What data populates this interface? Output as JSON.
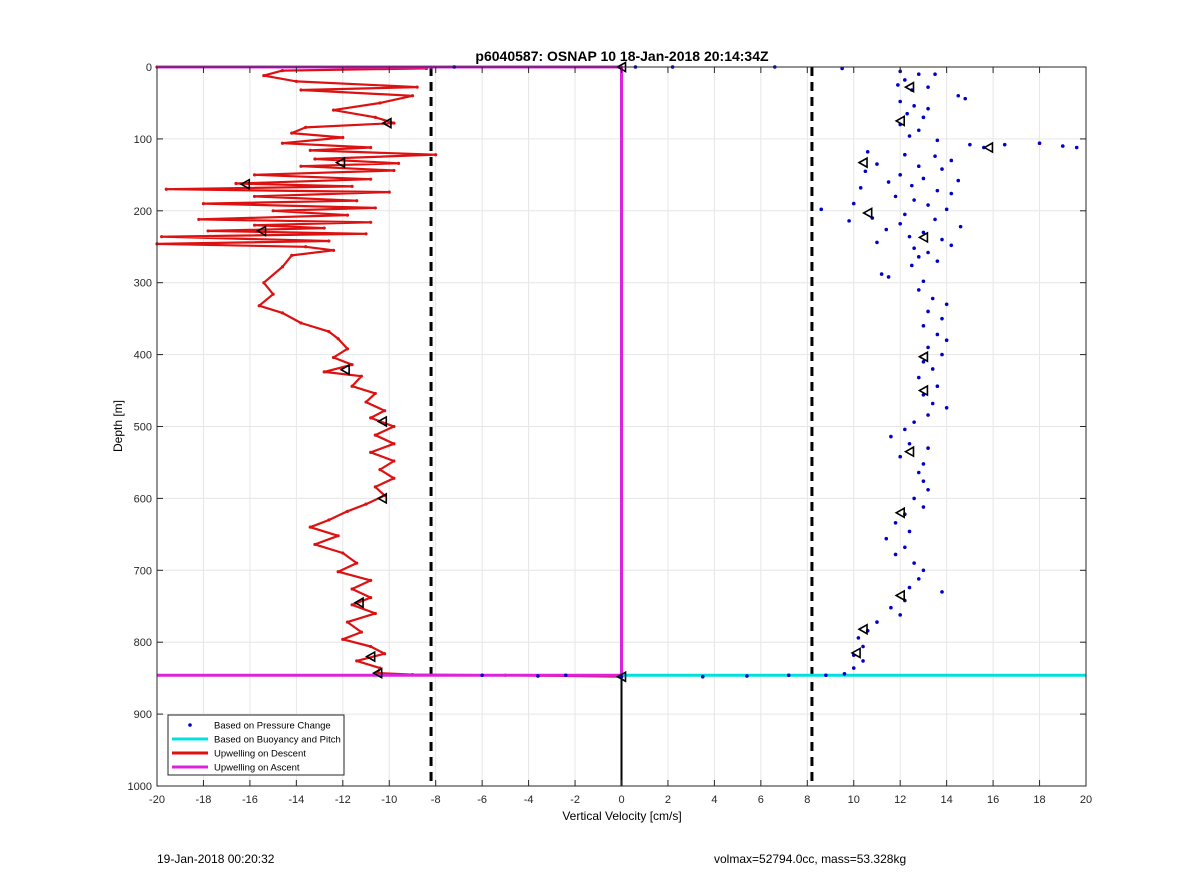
{
  "chart_data": {
    "type": "scatter",
    "title": "p6040587: OSNAP 10 18-Jan-2018 20:14:34Z",
    "xlabel": "Vertical Velocity [cm/s]",
    "ylabel": "Depth [m]",
    "xlim": [
      -20,
      20
    ],
    "ylim": [
      0,
      1000
    ],
    "y_reversed": true,
    "xticks": [
      -20,
      -18,
      -16,
      -14,
      -12,
      -10,
      -8,
      -6,
      -4,
      -2,
      0,
      2,
      4,
      6,
      8,
      10,
      12,
      14,
      16,
      18,
      20
    ],
    "yticks": [
      0,
      100,
      200,
      300,
      400,
      500,
      600,
      700,
      800,
      900,
      1000
    ],
    "grid": true,
    "legend_position": "bottom-left",
    "series": [
      {
        "name": "Based on Pressure Change",
        "color": "#0000cc",
        "marker": "dot",
        "points": [
          [
            9.5,
            2
          ],
          [
            12.0,
            6
          ],
          [
            12.8,
            10
          ],
          [
            13.5,
            10
          ],
          [
            12.2,
            18
          ],
          [
            11.9,
            25
          ],
          [
            12.5,
            32
          ],
          [
            13.2,
            28
          ],
          [
            14.5,
            40
          ],
          [
            14.8,
            44
          ],
          [
            12.0,
            48
          ],
          [
            12.6,
            54
          ],
          [
            13.2,
            58
          ],
          [
            12.3,
            65
          ],
          [
            13.0,
            70
          ],
          [
            12.0,
            80
          ],
          [
            12.8,
            88
          ],
          [
            12.4,
            96
          ],
          [
            13.6,
            102
          ],
          [
            15.0,
            108
          ],
          [
            15.6,
            112
          ],
          [
            16.5,
            108
          ],
          [
            18.0,
            106
          ],
          [
            19.0,
            110
          ],
          [
            19.6,
            112
          ],
          [
            10.6,
            118
          ],
          [
            12.2,
            122
          ],
          [
            13.5,
            124
          ],
          [
            14.2,
            130
          ],
          [
            11.0,
            135
          ],
          [
            12.8,
            138
          ],
          [
            13.8,
            142
          ],
          [
            10.5,
            145
          ],
          [
            12.0,
            150
          ],
          [
            13.0,
            155
          ],
          [
            14.5,
            158
          ],
          [
            11.5,
            160
          ],
          [
            12.5,
            165
          ],
          [
            10.3,
            168
          ],
          [
            13.6,
            172
          ],
          [
            14.2,
            176
          ],
          [
            11.8,
            180
          ],
          [
            12.6,
            185
          ],
          [
            10.0,
            190
          ],
          [
            13.2,
            192
          ],
          [
            8.6,
            198
          ],
          [
            14.0,
            198
          ],
          [
            12.2,
            205
          ],
          [
            10.8,
            210
          ],
          [
            13.5,
            212
          ],
          [
            9.8,
            214
          ],
          [
            12.0,
            218
          ],
          [
            14.6,
            222
          ],
          [
            11.4,
            226
          ],
          [
            13.0,
            230
          ],
          [
            12.4,
            236
          ],
          [
            13.8,
            240
          ],
          [
            11.0,
            244
          ],
          [
            14.2,
            248
          ],
          [
            12.6,
            252
          ],
          [
            13.2,
            258
          ],
          [
            12.8,
            264
          ],
          [
            13.6,
            270
          ],
          [
            12.5,
            276
          ],
          [
            11.2,
            288
          ],
          [
            11.5,
            292
          ],
          [
            13.0,
            298
          ],
          [
            12.8,
            310
          ],
          [
            13.4,
            322
          ],
          [
            14.0,
            330
          ],
          [
            13.2,
            340
          ],
          [
            13.8,
            350
          ],
          [
            13.0,
            360
          ],
          [
            13.6,
            372
          ],
          [
            14.0,
            380
          ],
          [
            13.2,
            390
          ],
          [
            13.8,
            400
          ],
          [
            13.0,
            410
          ],
          [
            13.4,
            420
          ],
          [
            12.8,
            432
          ],
          [
            13.6,
            444
          ],
          [
            13.0,
            456
          ],
          [
            13.4,
            468
          ],
          [
            14.0,
            474
          ],
          [
            13.2,
            484
          ],
          [
            12.6,
            494
          ],
          [
            12.2,
            504
          ],
          [
            11.6,
            514
          ],
          [
            12.4,
            524
          ],
          [
            13.2,
            530
          ],
          [
            12.0,
            542
          ],
          [
            13.0,
            552
          ],
          [
            12.8,
            564
          ],
          [
            13.0,
            576
          ],
          [
            13.2,
            588
          ],
          [
            12.6,
            600
          ],
          [
            13.0,
            612
          ],
          [
            12.2,
            622
          ],
          [
            11.8,
            634
          ],
          [
            12.4,
            646
          ],
          [
            11.4,
            656
          ],
          [
            12.2,
            668
          ],
          [
            11.8,
            678
          ],
          [
            12.6,
            690
          ],
          [
            13.0,
            700
          ],
          [
            12.8,
            712
          ],
          [
            12.4,
            724
          ],
          [
            13.8,
            730
          ],
          [
            12.2,
            742
          ],
          [
            11.6,
            752
          ],
          [
            12.0,
            762
          ],
          [
            11.0,
            772
          ],
          [
            10.6,
            784
          ],
          [
            10.2,
            794
          ],
          [
            10.4,
            806
          ],
          [
            10.0,
            818
          ],
          [
            10.4,
            826
          ],
          [
            10.0,
            836
          ],
          [
            9.6,
            844
          ],
          [
            8.8,
            846
          ],
          [
            7.2,
            846
          ],
          [
            5.4,
            847
          ],
          [
            3.5,
            848
          ],
          [
            2.2,
            0
          ],
          [
            -7.2,
            0
          ],
          [
            0.6,
            0
          ],
          [
            6.6,
            0
          ],
          [
            -6.0,
            846
          ],
          [
            -3.6,
            847
          ],
          [
            -2.4,
            846
          ],
          [
            0.0,
            848
          ]
        ]
      },
      {
        "name": "Based on Buoyancy and Pitch",
        "color": "#00e0e0",
        "marker": "line",
        "points": [
          [
            0,
            0
          ],
          [
            0,
            846
          ],
          [
            20,
            846
          ]
        ]
      },
      {
        "name": "Upwelling on Descent",
        "color": "#dd1111",
        "marker": "line",
        "points": [
          [
            -20,
            0
          ],
          [
            -10.0,
            0
          ],
          [
            -8.4,
            2
          ],
          [
            -14.6,
            5
          ],
          [
            -15.4,
            12
          ],
          [
            -14.0,
            20
          ],
          [
            -8.8,
            28
          ],
          [
            -13.8,
            32
          ],
          [
            -9.0,
            40
          ],
          [
            -10.4,
            50
          ],
          [
            -12.4,
            60
          ],
          [
            -10.6,
            70
          ],
          [
            -9.8,
            78
          ],
          [
            -13.6,
            84
          ],
          [
            -14.2,
            92
          ],
          [
            -12.0,
            98
          ],
          [
            -14.6,
            106
          ],
          [
            -10.8,
            112
          ],
          [
            -13.4,
            116
          ],
          [
            -8.0,
            122
          ],
          [
            -13.2,
            128
          ],
          [
            -9.6,
            134
          ],
          [
            -13.8,
            138
          ],
          [
            -9.8,
            144
          ],
          [
            -15.8,
            150
          ],
          [
            -10.8,
            156
          ],
          [
            -16.6,
            162
          ],
          [
            -11.6,
            166
          ],
          [
            -19.6,
            170
          ],
          [
            -10.0,
            174
          ],
          [
            -15.8,
            180
          ],
          [
            -11.4,
            186
          ],
          [
            -18.0,
            190
          ],
          [
            -10.6,
            196
          ],
          [
            -15.0,
            200
          ],
          [
            -11.8,
            206
          ],
          [
            -18.2,
            212
          ],
          [
            -10.8,
            216
          ],
          [
            -15.8,
            220
          ],
          [
            -12.8,
            224
          ],
          [
            -17.8,
            228
          ],
          [
            -11.0,
            232
          ],
          [
            -19.8,
            236
          ],
          [
            -12.6,
            242
          ],
          [
            -20.0,
            246
          ],
          [
            -13.6,
            250
          ],
          [
            -12.4,
            255
          ],
          [
            -14.2,
            262
          ],
          [
            -14.6,
            278
          ],
          [
            -15.4,
            300
          ],
          [
            -15.0,
            316
          ],
          [
            -15.6,
            332
          ],
          [
            -14.6,
            342
          ],
          [
            -13.8,
            356
          ],
          [
            -12.6,
            368
          ],
          [
            -12.2,
            378
          ],
          [
            -11.8,
            392
          ],
          [
            -12.4,
            404
          ],
          [
            -11.6,
            414
          ],
          [
            -12.8,
            424
          ],
          [
            -11.2,
            430
          ],
          [
            -11.6,
            444
          ],
          [
            -10.6,
            454
          ],
          [
            -11.0,
            466
          ],
          [
            -10.2,
            478
          ],
          [
            -10.8,
            488
          ],
          [
            -9.8,
            500
          ],
          [
            -10.6,
            512
          ],
          [
            -9.8,
            524
          ],
          [
            -10.8,
            536
          ],
          [
            -9.8,
            548
          ],
          [
            -10.4,
            560
          ],
          [
            -9.8,
            572
          ],
          [
            -10.6,
            584
          ],
          [
            -10.2,
            596
          ],
          [
            -11.0,
            608
          ],
          [
            -11.8,
            618
          ],
          [
            -12.6,
            630
          ],
          [
            -13.4,
            640
          ],
          [
            -12.2,
            652
          ],
          [
            -13.2,
            664
          ],
          [
            -12.0,
            676
          ],
          [
            -11.4,
            690
          ],
          [
            -12.2,
            702
          ],
          [
            -10.8,
            714
          ],
          [
            -11.6,
            726
          ],
          [
            -10.8,
            738
          ],
          [
            -11.6,
            748
          ],
          [
            -10.6,
            760
          ],
          [
            -11.8,
            772
          ],
          [
            -11.2,
            786
          ],
          [
            -12.0,
            796
          ],
          [
            -10.8,
            806
          ],
          [
            -10.2,
            816
          ],
          [
            -11.4,
            826
          ],
          [
            -10.4,
            836
          ],
          [
            -10.5,
            843
          ],
          [
            -9.0,
            845
          ],
          [
            -5.0,
            846
          ],
          [
            0,
            848
          ]
        ]
      },
      {
        "name": "Upwelling on Ascent",
        "color": "#dd22dd",
        "marker": "line",
        "points": [
          [
            -20,
            846
          ],
          [
            0,
            846
          ],
          [
            0,
            0
          ],
          [
            -20,
            0
          ]
        ]
      },
      {
        "name": "",
        "color": "#000000",
        "marker": "triangle",
        "points": [
          [
            12.4,
            28
          ],
          [
            12.0,
            75
          ],
          [
            15.8,
            112
          ],
          [
            10.4,
            133
          ],
          [
            10.6,
            203
          ],
          [
            13.0,
            237
          ],
          [
            13.0,
            403
          ],
          [
            13.0,
            450
          ],
          [
            12.4,
            535
          ],
          [
            12.0,
            620
          ],
          [
            12.0,
            735
          ],
          [
            10.4,
            782
          ],
          [
            10.1,
            815
          ],
          [
            -10.1,
            78
          ],
          [
            -12.1,
            133
          ],
          [
            -16.2,
            163
          ],
          [
            -15.5,
            228
          ],
          [
            -11.9,
            421
          ],
          [
            -10.3,
            493
          ],
          [
            -10.3,
            600
          ],
          [
            -11.3,
            745
          ],
          [
            -10.8,
            820
          ],
          [
            -10.5,
            843
          ],
          [
            0,
            0
          ],
          [
            0,
            848
          ]
        ]
      }
    ],
    "reference_lines": [
      {
        "orientation": "vertical",
        "x": -8.2,
        "style": "dashed",
        "color": "#000000"
      },
      {
        "orientation": "vertical",
        "x": 8.2,
        "style": "dashed",
        "color": "#000000"
      },
      {
        "orientation": "vertical",
        "x": 0,
        "y_from": 848,
        "y_to": 1000,
        "style": "solid",
        "color": "#000000"
      }
    ]
  },
  "footer": {
    "left": "19-Jan-2018 00:20:32",
    "right": "volmax=52794.0cc, mass=53.328kg"
  }
}
